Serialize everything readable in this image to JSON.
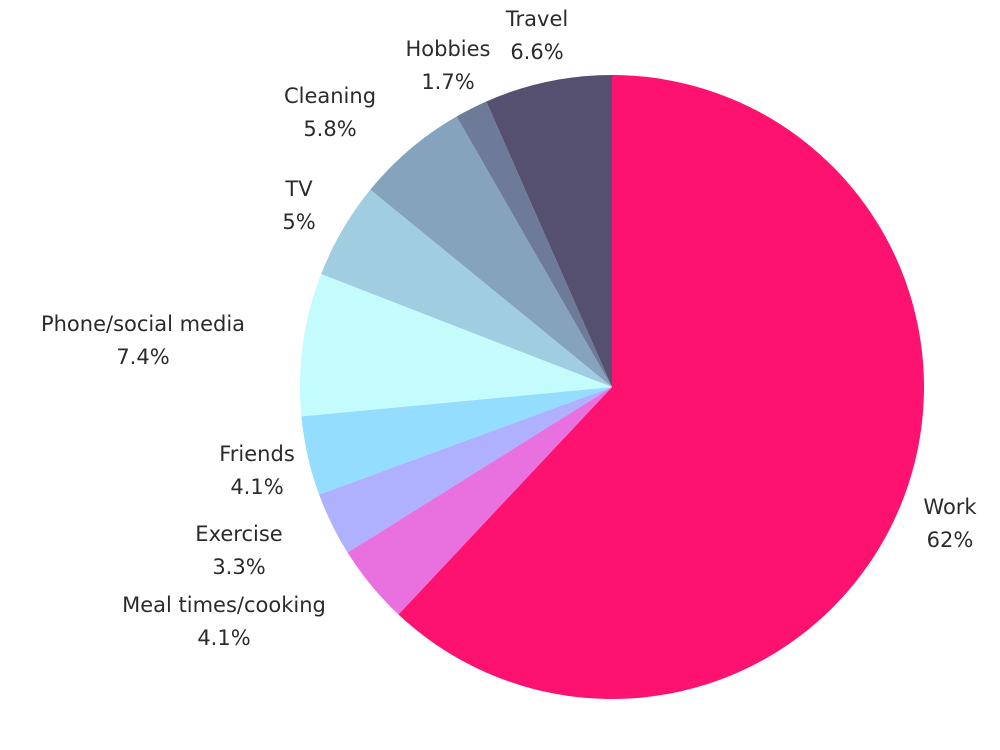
{
  "chart_data": {
    "type": "pie",
    "start": "12 o'clock",
    "direction": "clockwise",
    "slices": [
      {
        "label": "Work",
        "value": 62,
        "value_label": "62%",
        "color": "#fd1270"
      },
      {
        "label": "Meal times/cooking",
        "value": 4.1,
        "value_label": "4.1%",
        "color": "#e870df"
      },
      {
        "label": "Exercise",
        "value": 3.3,
        "value_label": "3.3%",
        "color": "#afb1ff"
      },
      {
        "label": "Friends",
        "value": 4.1,
        "value_label": "4.1%",
        "color": "#95ddfe"
      },
      {
        "label": "Phone/social media",
        "value": 7.4,
        "value_label": "7.4%",
        "color": "#c4fbfd"
      },
      {
        "label": "TV",
        "value": 5,
        "value_label": "5%",
        "color": "#a0cde0"
      },
      {
        "label": "Cleaning",
        "value": 5.8,
        "value_label": "5.8%",
        "color": "#86a3be"
      },
      {
        "label": "Hobbies",
        "value": 1.7,
        "value_label": "1.7%",
        "color": "#6d7b98"
      },
      {
        "label": "Travel",
        "value": 6.6,
        "value_label": "6.6%",
        "color": "#55506f"
      }
    ]
  }
}
